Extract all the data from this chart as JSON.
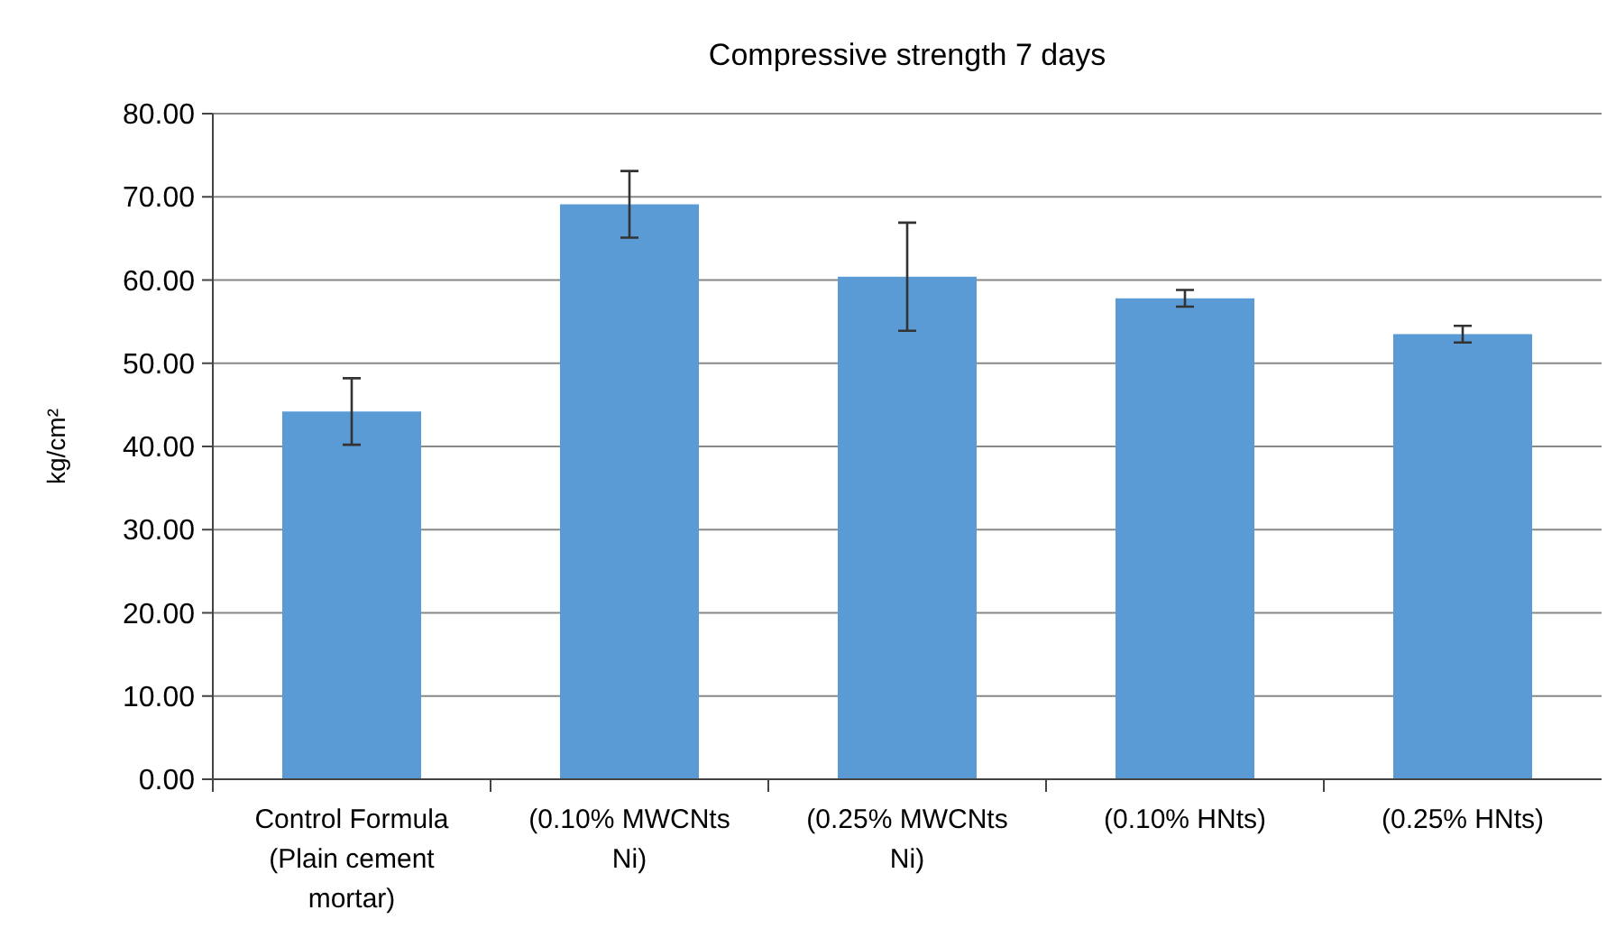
{
  "chart_data": {
    "type": "bar",
    "title": "Compressive strength 7 days",
    "ylabel": "kg/cm²",
    "categories": [
      "Control Formula (Plain cement mortar)",
      "(0.10% MWCNts Ni)",
      "(0.25% MWCNts Ni)",
      "(0.10% HNts)",
      "(0.25% HNts)"
    ],
    "values": [
      44.2,
      69.1,
      60.4,
      57.8,
      53.5
    ],
    "errors": [
      4,
      4,
      6.5,
      1,
      1
    ],
    "color": "#5b9bd5",
    "ylim": [
      0,
      80
    ],
    "yticks": [
      {
        "value": 0,
        "label": "0.00"
      },
      {
        "value": 10,
        "label": "10.00"
      },
      {
        "value": 20,
        "label": "20.00"
      },
      {
        "value": 30,
        "label": "30.00"
      },
      {
        "value": 40,
        "label": "40.00"
      },
      {
        "value": 50,
        "label": "50.00"
      },
      {
        "value": 60,
        "label": "60.00"
      },
      {
        "value": 70,
        "label": "70.00"
      },
      {
        "value": 80,
        "label": "80.00"
      }
    ],
    "grid": "y"
  }
}
